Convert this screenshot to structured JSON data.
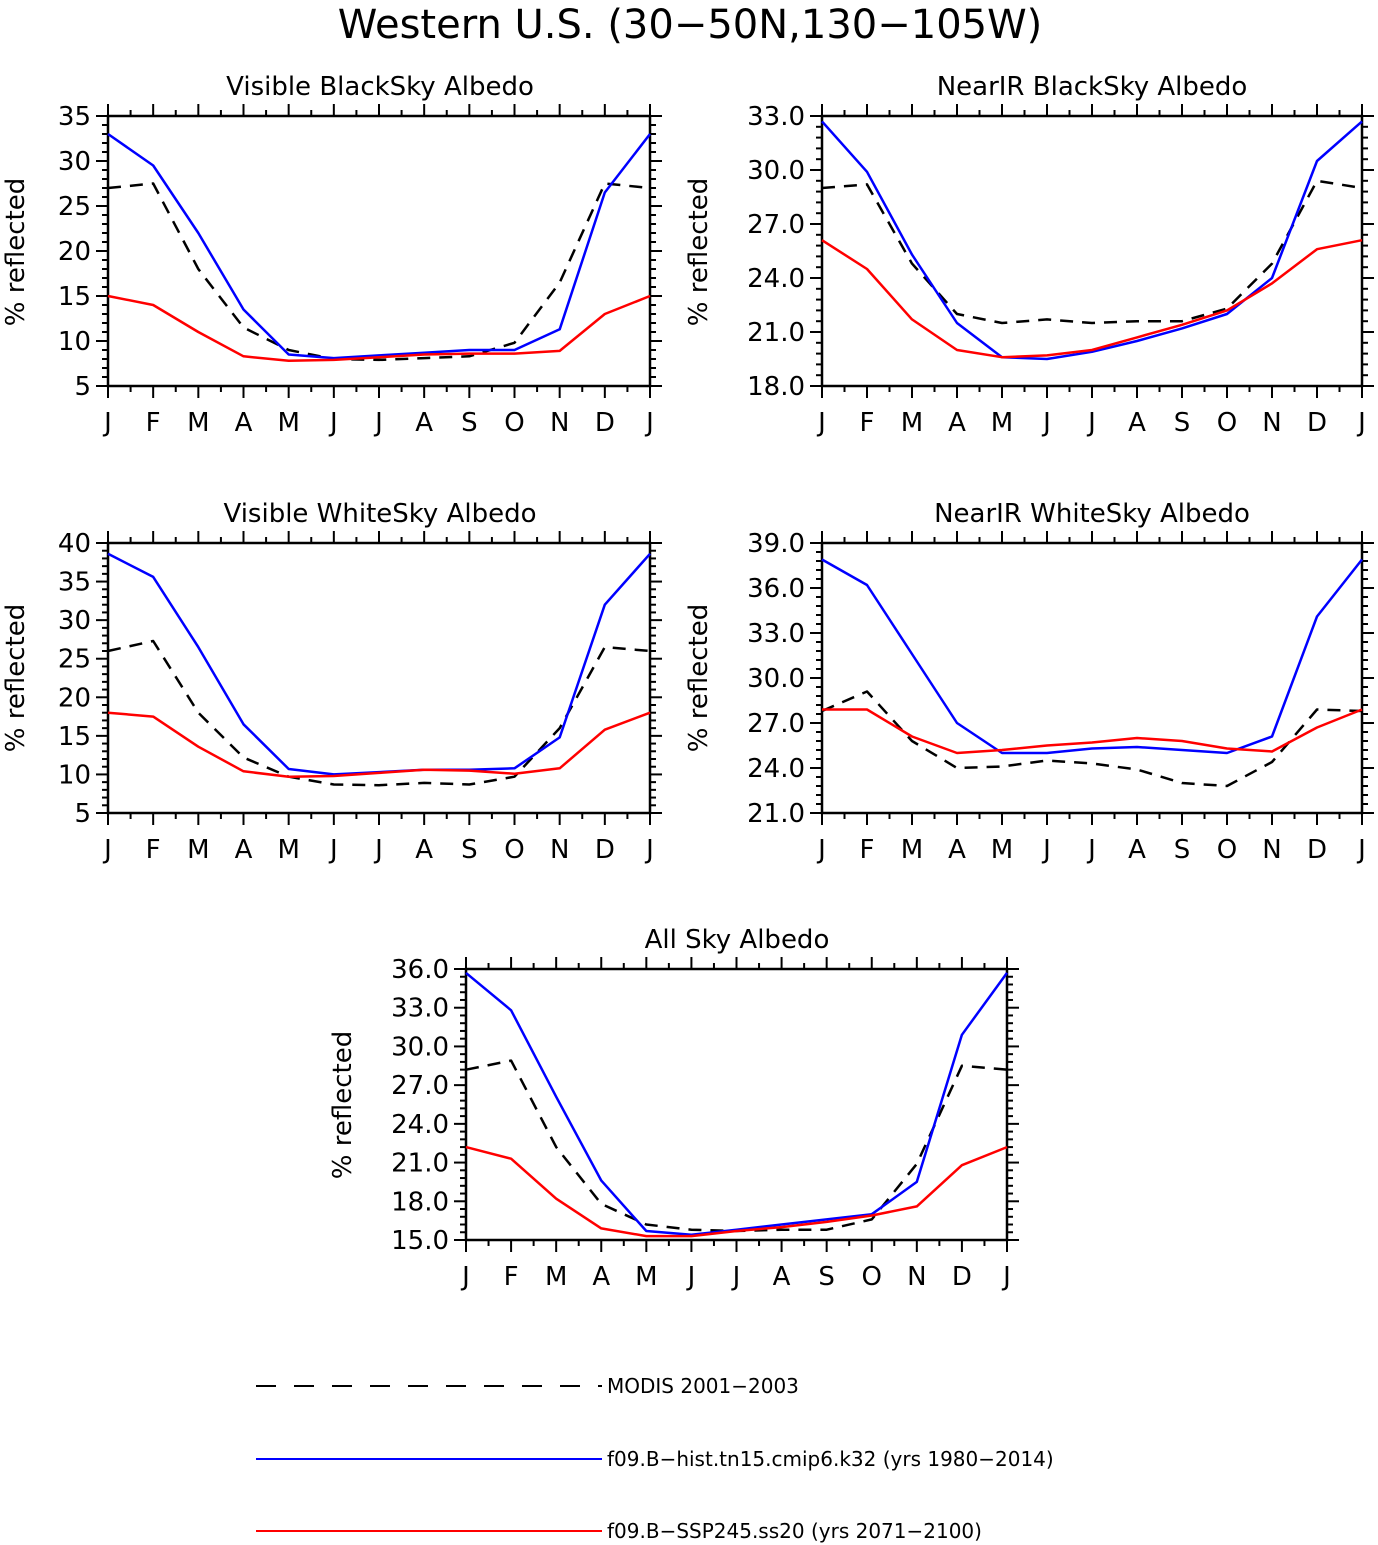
{
  "figure_title": "Western U.S. (30−50N,130−105W)",
  "legend": [
    {
      "label": "MODIS 2001−2003",
      "color": "#000000",
      "style": "dashed"
    },
    {
      "label": "f09.B−hist.tn15.cmip6.k32 (yrs 1980−2014)",
      "color": "#0000ff",
      "style": "solid"
    },
    {
      "label": "f09.B−SSP245.ss20 (yrs 2071−2100)",
      "color": "#ff0000",
      "style": "solid"
    }
  ],
  "chart_data": [
    {
      "type": "line",
      "title": "Visible BlackSky Albedo",
      "xlabel": "",
      "ylabel": "% reflected",
      "categories": [
        "J",
        "F",
        "M",
        "A",
        "M",
        "J",
        "J",
        "A",
        "S",
        "O",
        "N",
        "D",
        "J"
      ],
      "ylim": [
        5,
        35
      ],
      "yticks": [
        "5",
        "10",
        "15",
        "20",
        "25",
        "30",
        "35"
      ],
      "grid": false,
      "series": [
        {
          "style": "dashed",
          "color": "#000000",
          "values": [
            27.0,
            27.5,
            18.0,
            11.5,
            9.0,
            8.0,
            7.9,
            8.1,
            8.3,
            9.8,
            16.5,
            27.5,
            27.0
          ]
        },
        {
          "style": "solid",
          "color": "#0000ff",
          "values": [
            33.0,
            29.5,
            22.0,
            13.5,
            8.5,
            8.1,
            8.4,
            8.7,
            9.0,
            9.0,
            11.3,
            26.5,
            33.0
          ]
        },
        {
          "style": "solid",
          "color": "#ff0000",
          "values": [
            15.0,
            14.0,
            11.0,
            8.3,
            7.8,
            7.9,
            8.2,
            8.5,
            8.6,
            8.6,
            8.9,
            13.0,
            15.0
          ]
        }
      ]
    },
    {
      "type": "line",
      "title": "NearIR BlackSky Albedo",
      "xlabel": "",
      "ylabel": "% reflected",
      "categories": [
        "J",
        "F",
        "M",
        "A",
        "M",
        "J",
        "J",
        "A",
        "S",
        "O",
        "N",
        "D",
        "J"
      ],
      "ylim": [
        18,
        33
      ],
      "yticks": [
        "18.0",
        "21.0",
        "24.0",
        "27.0",
        "30.0",
        "33.0"
      ],
      "grid": false,
      "series": [
        {
          "style": "dashed",
          "color": "#000000",
          "values": [
            29.0,
            29.2,
            24.8,
            22.0,
            21.5,
            21.7,
            21.5,
            21.6,
            21.6,
            22.3,
            24.8,
            29.4,
            29.0
          ]
        },
        {
          "style": "solid",
          "color": "#0000ff",
          "values": [
            32.7,
            29.9,
            25.3,
            21.5,
            19.6,
            19.5,
            19.9,
            20.5,
            21.2,
            22.0,
            24.0,
            30.5,
            32.7
          ]
        },
        {
          "style": "solid",
          "color": "#ff0000",
          "values": [
            26.1,
            24.5,
            21.7,
            20.0,
            19.6,
            19.7,
            20.0,
            20.7,
            21.4,
            22.2,
            23.7,
            25.6,
            26.1
          ]
        }
      ]
    },
    {
      "type": "line",
      "title": "Visible WhiteSky Albedo",
      "xlabel": "",
      "ylabel": "% reflected",
      "categories": [
        "J",
        "F",
        "M",
        "A",
        "M",
        "J",
        "J",
        "A",
        "S",
        "O",
        "N",
        "D",
        "J"
      ],
      "ylim": [
        5,
        40
      ],
      "yticks": [
        "5",
        "10",
        "15",
        "20",
        "25",
        "30",
        "35",
        "40"
      ],
      "grid": false,
      "series": [
        {
          "style": "dashed",
          "color": "#000000",
          "values": [
            26.0,
            27.3,
            18.0,
            12.2,
            9.7,
            8.7,
            8.6,
            8.9,
            8.7,
            9.7,
            16.0,
            26.5,
            26.0
          ]
        },
        {
          "style": "solid",
          "color": "#0000ff",
          "values": [
            38.6,
            35.6,
            26.5,
            16.5,
            10.7,
            10.0,
            10.3,
            10.6,
            10.6,
            10.8,
            14.8,
            32.0,
            38.6
          ]
        },
        {
          "style": "solid",
          "color": "#ff0000",
          "values": [
            18.0,
            17.5,
            13.6,
            10.4,
            9.7,
            9.8,
            10.2,
            10.6,
            10.5,
            10.1,
            10.8,
            15.8,
            18.0
          ]
        }
      ]
    },
    {
      "type": "line",
      "title": "NearIR WhiteSky Albedo",
      "xlabel": "",
      "ylabel": "% reflected",
      "categories": [
        "J",
        "F",
        "M",
        "A",
        "M",
        "J",
        "J",
        "A",
        "S",
        "O",
        "N",
        "D",
        "J"
      ],
      "ylim": [
        21,
        39
      ],
      "yticks": [
        "21.0",
        "24.0",
        "27.0",
        "30.0",
        "33.0",
        "36.0",
        "39.0"
      ],
      "grid": false,
      "series": [
        {
          "style": "dashed",
          "color": "#000000",
          "values": [
            27.8,
            29.1,
            25.8,
            24.0,
            24.1,
            24.5,
            24.3,
            23.9,
            23.0,
            22.8,
            24.4,
            27.9,
            27.8
          ]
        },
        {
          "style": "solid",
          "color": "#0000ff",
          "values": [
            37.9,
            36.2,
            31.6,
            27.0,
            25.0,
            25.0,
            25.3,
            25.4,
            25.2,
            25.0,
            26.1,
            34.1,
            37.9
          ]
        },
        {
          "style": "solid",
          "color": "#ff0000",
          "values": [
            27.9,
            27.9,
            26.1,
            25.0,
            25.2,
            25.5,
            25.7,
            26.0,
            25.8,
            25.3,
            25.1,
            26.7,
            27.9
          ]
        }
      ]
    },
    {
      "type": "line",
      "title": "All Sky Albedo",
      "xlabel": "",
      "ylabel": "% reflected",
      "categories": [
        "J",
        "F",
        "M",
        "A",
        "M",
        "J",
        "J",
        "A",
        "S",
        "O",
        "N",
        "D",
        "J"
      ],
      "ylim": [
        15,
        36
      ],
      "yticks": [
        "15.0",
        "18.0",
        "21.0",
        "24.0",
        "27.0",
        "30.0",
        "33.0",
        "36.0"
      ],
      "grid": false,
      "series": [
        {
          "style": "dashed",
          "color": "#000000",
          "values": [
            28.2,
            28.9,
            22.2,
            17.8,
            16.2,
            15.8,
            15.7,
            15.8,
            15.8,
            16.6,
            20.9,
            28.5,
            28.2
          ]
        },
        {
          "style": "solid",
          "color": "#0000ff",
          "values": [
            35.7,
            32.8,
            26.1,
            19.6,
            15.7,
            15.4,
            15.8,
            16.2,
            16.6,
            17.0,
            19.5,
            30.9,
            35.7
          ]
        },
        {
          "style": "solid",
          "color": "#ff0000",
          "values": [
            22.2,
            21.3,
            18.2,
            15.9,
            15.3,
            15.3,
            15.7,
            16.0,
            16.4,
            16.9,
            17.6,
            20.8,
            22.2
          ]
        }
      ]
    }
  ]
}
